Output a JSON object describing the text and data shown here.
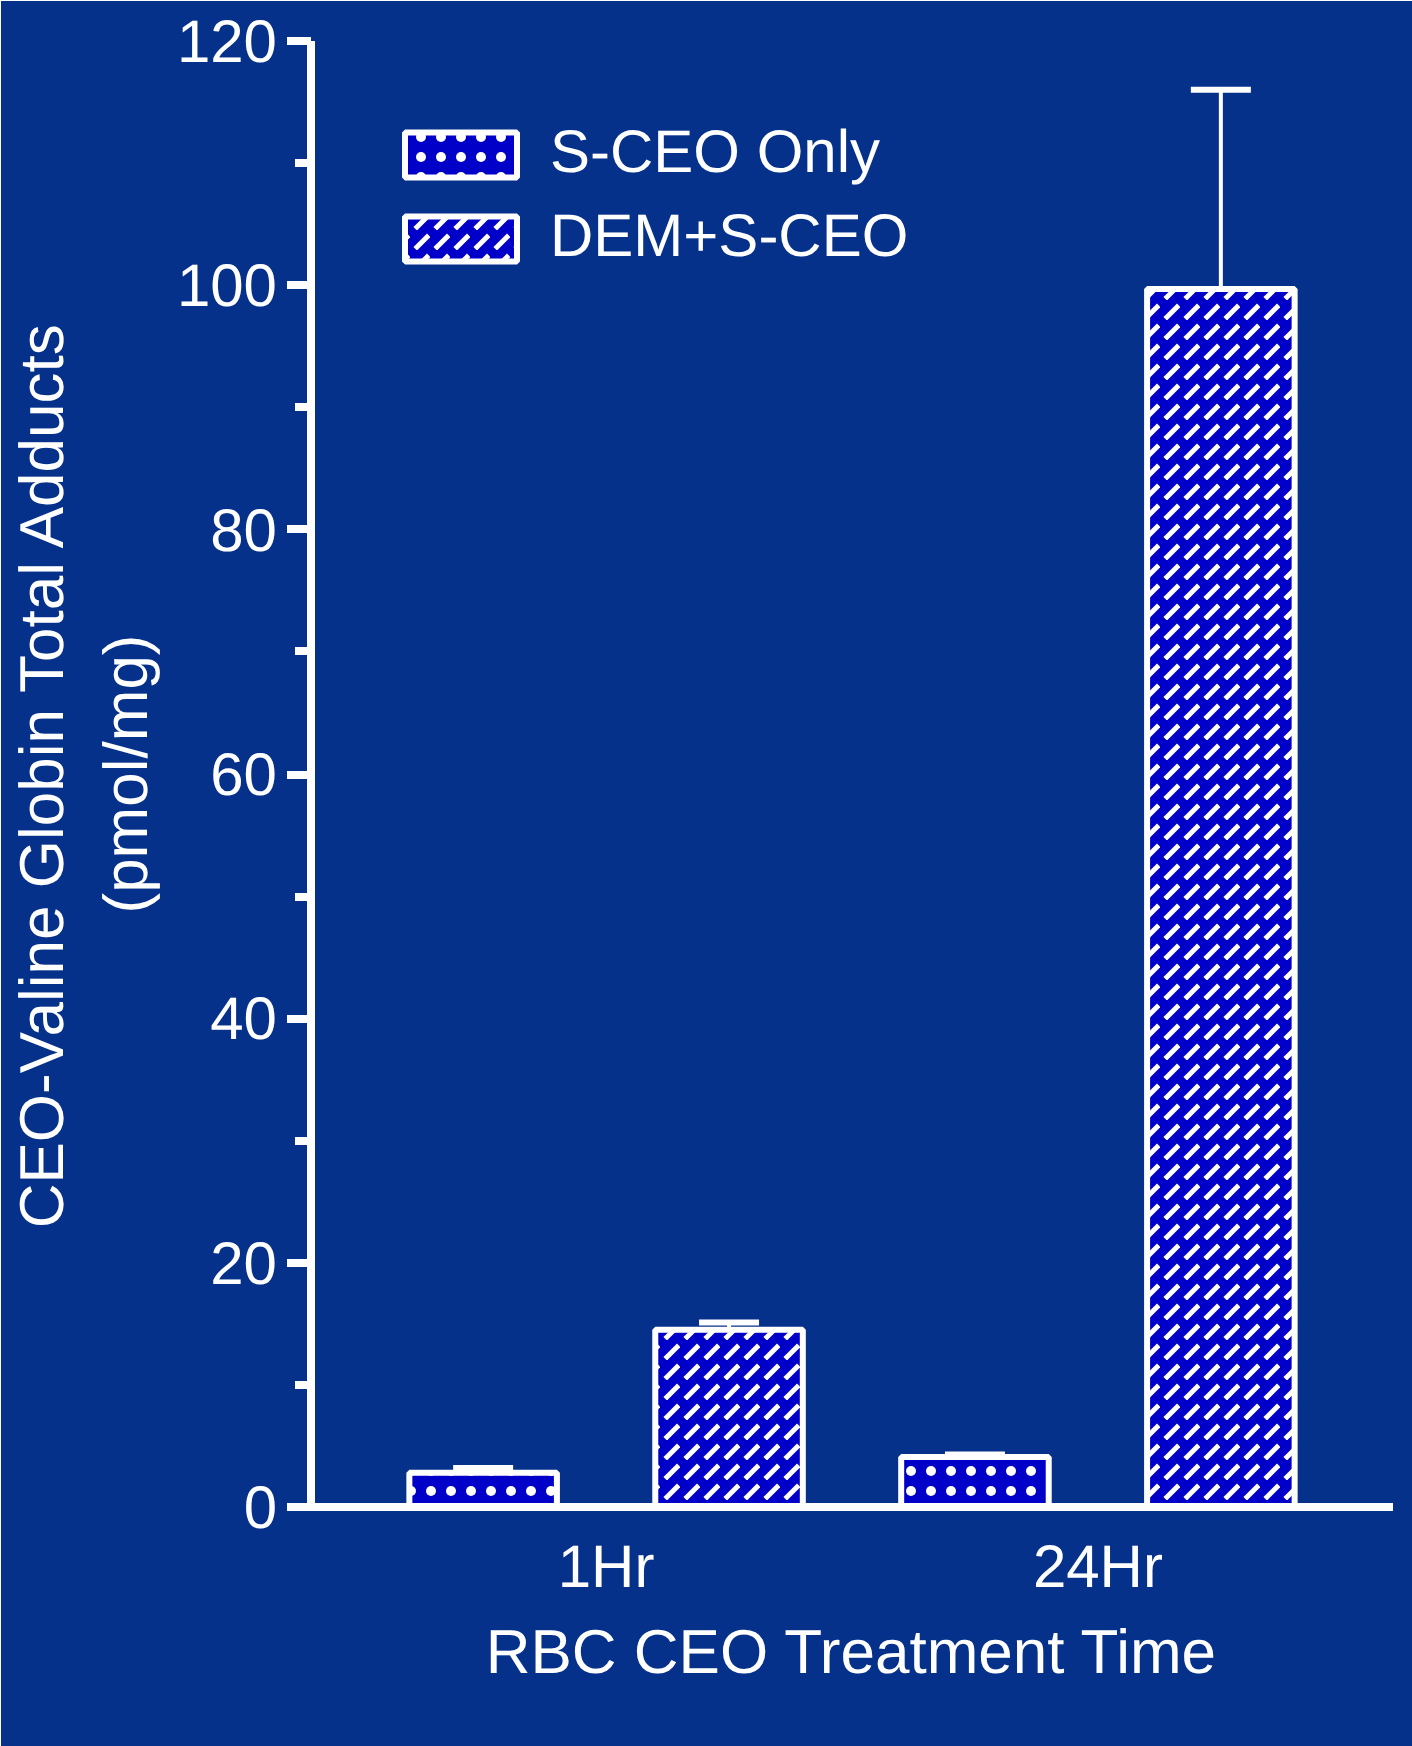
{
  "chart_data": {
    "type": "bar",
    "categories": [
      "1Hr",
      "24Hr"
    ],
    "xlabel": "RBC CEO Treatment Time",
    "ylabel": "CEO-Valine Globin Total Adducts\n(pmol/mg)",
    "series": [
      {
        "name": "S-CEO Only",
        "color": "#0000c8",
        "values": [
          2.8,
          4.1
        ],
        "errors": [
          [
            2.8,
            3.2
          ],
          [
            4.1,
            4.3
          ]
        ]
      },
      {
        "name": "DEM+S-CEO",
        "color": "#0000c8",
        "values": [
          14.5,
          99.7
        ],
        "errors": [
          [
            14.5,
            15.1
          ],
          [
            99.7,
            116.0
          ]
        ]
      }
    ],
    "ylim": [
      0,
      120
    ],
    "yticks": [
      0,
      {
        "value": 10,
        "label": null
      },
      20,
      {
        "value": 30,
        "label": null
      },
      40,
      {
        "value": 50,
        "label": null
      },
      60,
      {
        "value": 70,
        "label": null
      },
      80,
      {
        "value": 90,
        "label": null
      },
      100,
      {
        "value": 110,
        "label": null
      },
      120
    ],
    "legend": "top left",
    "grid": false
  }
}
